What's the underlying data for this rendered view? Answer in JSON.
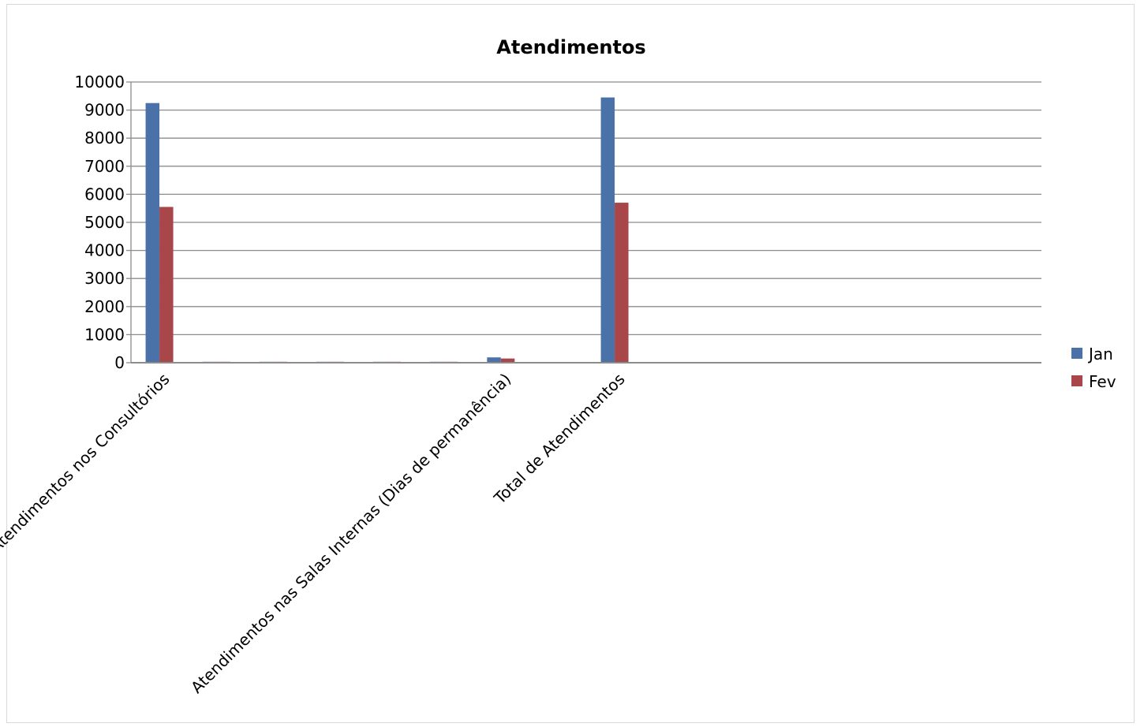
{
  "chart_data": {
    "type": "bar",
    "title": "Atendimentos",
    "xlabel": "",
    "ylabel": "",
    "ylim": [
      0,
      10000
    ],
    "yticks": [
      0,
      1000,
      2000,
      3000,
      4000,
      5000,
      6000,
      7000,
      8000,
      9000,
      10000
    ],
    "grid": true,
    "legend_position": "right",
    "categories": [
      "Atendimentos nos Consultórios",
      "",
      "",
      "",
      "",
      "",
      "Atendimentos nas Salas Internas (Dias de permanência)",
      "",
      "Total de Atendimentos",
      "",
      "",
      "",
      "",
      "",
      "",
      ""
    ],
    "series": [
      {
        "name": "Jan",
        "color": "#4a72a8",
        "values": [
          9250,
          30,
          25,
          20,
          18,
          15,
          190,
          0,
          9450,
          0,
          0,
          0,
          0,
          0,
          0,
          0
        ]
      },
      {
        "name": "Fev",
        "color": "#a9464a",
        "values": [
          5550,
          25,
          20,
          15,
          12,
          10,
          150,
          0,
          5700,
          0,
          0,
          0,
          0,
          0,
          0,
          0
        ]
      }
    ]
  }
}
